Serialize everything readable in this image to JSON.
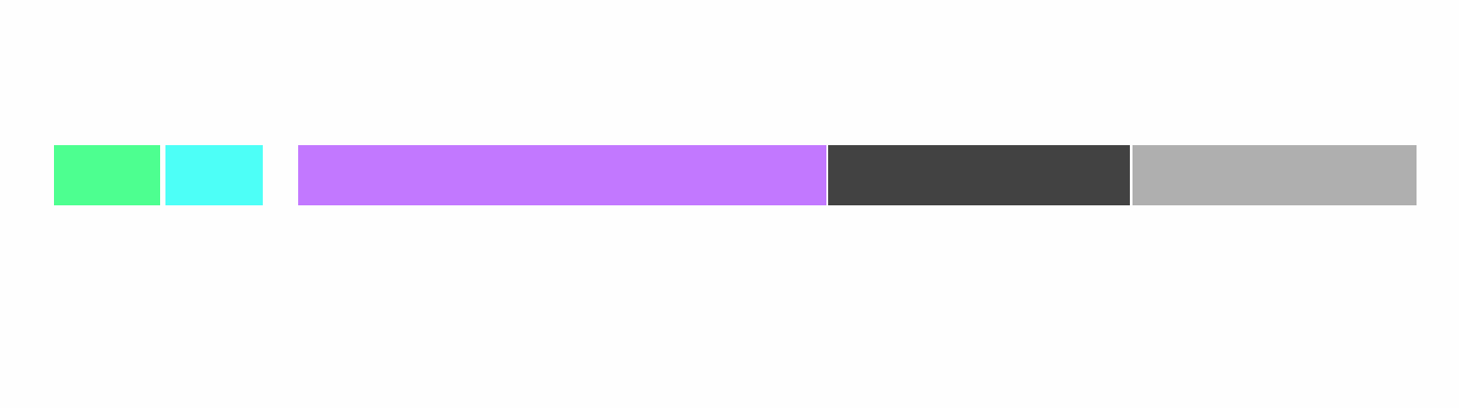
{
  "blocks": [
    {
      "id": "green",
      "color": "#4dff90"
    },
    {
      "id": "cyan",
      "color": "#4dfff7"
    },
    {
      "id": "purple",
      "color": "#c278ff"
    },
    {
      "id": "dark-gray",
      "color": "#424242"
    },
    {
      "id": "light-gray",
      "color": "#afafaf"
    }
  ]
}
